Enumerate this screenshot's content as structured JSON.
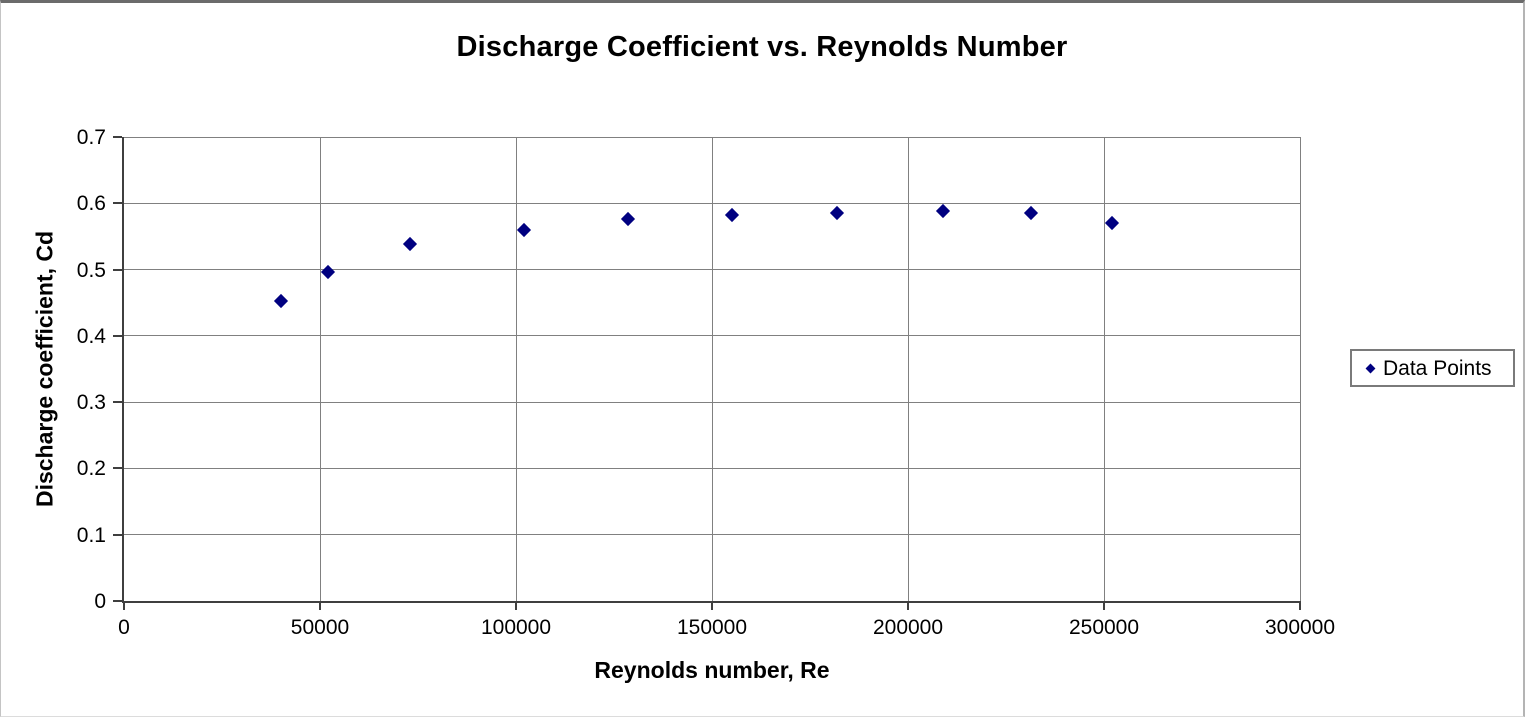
{
  "chart_data": {
    "type": "scatter",
    "title": "Discharge Coefficient vs. Reynolds Number",
    "xlabel": "Reynolds number, Re",
    "ylabel": "Discharge coefficient, Cd",
    "xlim": [
      0,
      300000
    ],
    "ylim": [
      0,
      0.7
    ],
    "x_ticks": [
      "0",
      "50000",
      "100000",
      "150000",
      "200000",
      "250000",
      "300000"
    ],
    "y_ticks": [
      "0",
      "0.1",
      "0.2",
      "0.3",
      "0.4",
      "0.5",
      "0.6",
      "0.7"
    ],
    "grid": true,
    "legend_position": "right",
    "series": [
      {
        "name": "Data Points",
        "marker": "diamond",
        "color": "#000080",
        "points": [
          {
            "x": 40000,
            "y": 0.452
          },
          {
            "x": 52000,
            "y": 0.496
          },
          {
            "x": 73000,
            "y": 0.538
          },
          {
            "x": 102000,
            "y": 0.56
          },
          {
            "x": 128500,
            "y": 0.576
          },
          {
            "x": 155000,
            "y": 0.582
          },
          {
            "x": 182000,
            "y": 0.586
          },
          {
            "x": 209000,
            "y": 0.588
          },
          {
            "x": 231500,
            "y": 0.585
          },
          {
            "x": 252000,
            "y": 0.57
          }
        ]
      }
    ],
    "colors": {
      "gridline": "#808080",
      "axis": "#3f3f3f",
      "text": "#000000",
      "background": "#ffffff"
    }
  }
}
